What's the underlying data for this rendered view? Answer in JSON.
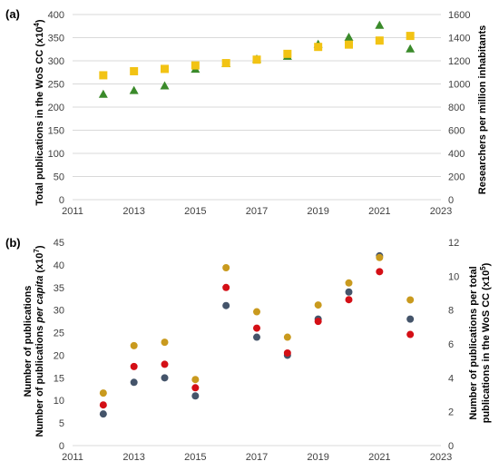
{
  "colors": {
    "grid": "#d9d9d9",
    "green": "#3a8a2a",
    "yellow": "#f2c314",
    "navy": "#44546a",
    "red": "#d40f16",
    "gold": "#c99a1e"
  },
  "chart_data": [
    {
      "panel_label": "(a)",
      "type": "scatter",
      "grid": true,
      "xlim": [
        2011,
        2023
      ],
      "x_ticks": [
        "2011",
        "2013",
        "2015",
        "2017",
        "2019",
        "2021",
        "2023"
      ],
      "ylim_left": [
        0,
        400
      ],
      "y_ticks_left": [
        "0",
        "50",
        "100",
        "150",
        "200",
        "250",
        "300",
        "350",
        "400"
      ],
      "ylim_right": [
        0,
        1600
      ],
      "y_ticks_right": [
        "0",
        "200",
        "400",
        "600",
        "800",
        "1000",
        "1200",
        "1400",
        "1600"
      ],
      "ylabel_left": {
        "main": "Total publications in the WoS CC (x10",
        "sup": "4",
        "end": ")"
      },
      "ylabel_right": "Researchers per million inhabitants",
      "series": [
        {
          "axis": "left",
          "marker": "triangle",
          "color": "#3a8a2a",
          "points": [
            [
              2012,
              228
            ],
            [
              2013,
              236
            ],
            [
              2014,
              246
            ],
            [
              2015,
              282
            ],
            [
              2016,
              294
            ],
            [
              2017,
              304
            ],
            [
              2018,
              310
            ],
            [
              2019,
              336
            ],
            [
              2020,
              351
            ],
            [
              2021,
              377
            ],
            [
              2022,
              326
            ]
          ]
        },
        {
          "axis": "right",
          "marker": "square",
          "color": "#f2c314",
          "points": [
            [
              2012,
              1075
            ],
            [
              2013,
              1110
            ],
            [
              2014,
              1130
            ],
            [
              2015,
              1160
            ],
            [
              2016,
              1180
            ],
            [
              2017,
              1210
            ],
            [
              2018,
              1260
            ],
            [
              2019,
              1320
            ],
            [
              2020,
              1340
            ],
            [
              2021,
              1375
            ],
            [
              2022,
              1415
            ]
          ]
        }
      ]
    },
    {
      "panel_label": "(b)",
      "type": "scatter",
      "grid": false,
      "xlim": [
        2011,
        2023
      ],
      "x_ticks": [
        "2011",
        "2013",
        "2015",
        "2017",
        "2019",
        "2021",
        "2023"
      ],
      "ylim_left": [
        0,
        45
      ],
      "y_ticks_left": [
        "0",
        "5",
        "10",
        "15",
        "20",
        "25",
        "30",
        "35",
        "40",
        "45"
      ],
      "ylim_right": [
        0,
        12
      ],
      "y_ticks_right": [
        "0",
        "2",
        "4",
        "6",
        "8",
        "10",
        "12"
      ],
      "ylabel_left_line1": "Number of publications",
      "ylabel_left_line2": {
        "main": "Number of publications ",
        "ital": "per capita",
        "mid": " (x10",
        "sup": "7",
        "end": ")"
      },
      "ylabel_right_line1": "Number of publications per total",
      "ylabel_right_line2": {
        "main": "publications in the WoS CC (x10",
        "sup": "5",
        "end": ")"
      },
      "series": [
        {
          "axis": "left",
          "marker": "circle",
          "color": "#44546a",
          "points": [
            [
              2012,
              7
            ],
            [
              2013,
              14
            ],
            [
              2014,
              15
            ],
            [
              2015,
              11
            ],
            [
              2016,
              31
            ],
            [
              2017,
              24
            ],
            [
              2018,
              20
            ],
            [
              2019,
              28
            ],
            [
              2020,
              34
            ],
            [
              2021,
              42
            ],
            [
              2022,
              28
            ]
          ]
        },
        {
          "axis": "left",
          "marker": "circle",
          "color": "#d40f16",
          "points": [
            [
              2012,
              9
            ],
            [
              2013,
              17.5
            ],
            [
              2014,
              18
            ],
            [
              2015,
              12.8
            ],
            [
              2016,
              35
            ],
            [
              2017,
              26
            ],
            [
              2018,
              20.5
            ],
            [
              2019,
              27.5
            ],
            [
              2020,
              32.3
            ],
            [
              2021,
              38.5
            ],
            [
              2022,
              24.6
            ]
          ]
        },
        {
          "axis": "right",
          "marker": "circle",
          "color": "#c99a1e",
          "points": [
            [
              2012,
              3.1
            ],
            [
              2013,
              5.9
            ],
            [
              2014,
              6.1
            ],
            [
              2015,
              3.9
            ],
            [
              2016,
              10.5
            ],
            [
              2017,
              7.9
            ],
            [
              2018,
              6.4
            ],
            [
              2019,
              8.3
            ],
            [
              2020,
              9.6
            ],
            [
              2021,
              11.1
            ],
            [
              2022,
              8.6
            ]
          ]
        }
      ]
    }
  ]
}
